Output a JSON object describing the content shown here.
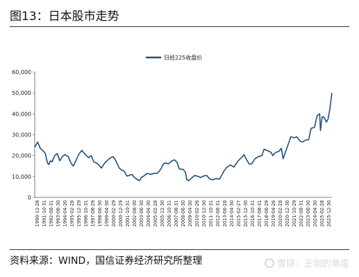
{
  "figure": {
    "title": "图13：日本股市走势",
    "source": "资料来源：WIND，国信证券经济研究所整理",
    "watermark": "雪球：王剑的角度"
  },
  "chart_data": {
    "type": "line",
    "legend": [
      "日经225收盘价"
    ],
    "ylim": [
      0,
      60000
    ],
    "yticks": [
      0,
      10000,
      20000,
      30000,
      40000,
      50000,
      60000
    ],
    "ytick_labels": [
      "0",
      "10,000",
      "20,000",
      "30,000",
      "40,000",
      "50,000",
      "60,000"
    ],
    "xtick_labels": [
      "1990-12-28",
      "1991-10-31",
      "1992-08-31",
      "1993-06-30",
      "1994-04-30",
      "1995-02-28",
      "1995-12-29",
      "1996-10-31",
      "1997-08-29",
      "1998-06-30",
      "1999-04-30",
      "2000-02-29",
      "2000-12-29",
      "2001-10-31",
      "2002-08-30",
      "2003-06-30",
      "2004-04-30",
      "2005-02-28",
      "2005-12-30",
      "2006-10-31",
      "2007-08-31",
      "2008-06-30",
      "2009-04-30",
      "2010-02-26",
      "2010-12-30",
      "2011-10-31",
      "2012-08-31",
      "2013-06-28",
      "2014-04-30",
      "2015-02-27",
      "2015-12-30",
      "2016-10-31",
      "2017-08-31",
      "2018-06-29",
      "2019-04-26",
      "2020-02-28",
      "2020-12-30",
      "2021-10-29",
      "2022-08-31",
      "2023-06-30",
      "2024-04-30",
      "2025-02-28",
      "2025-12-30"
    ],
    "series": [
      {
        "name": "日经225收盘价",
        "color": "#1f4e79",
        "x": [
          1990.95,
          1991.3,
          1991.6,
          1991.9,
          1992.2,
          1992.45,
          1992.6,
          1992.8,
          1993.0,
          1993.3,
          1993.6,
          1993.9,
          1994.2,
          1994.5,
          1994.9,
          1995.2,
          1995.5,
          1995.9,
          1996.2,
          1996.5,
          1996.9,
          1997.3,
          1997.6,
          1997.9,
          1998.2,
          1998.5,
          1998.8,
          1999.2,
          1999.6,
          1999.9,
          2000.2,
          2000.5,
          2000.9,
          2001.2,
          2001.5,
          2001.8,
          2002.1,
          2002.4,
          2002.7,
          2003.0,
          2003.3,
          2003.5,
          2003.9,
          2004.2,
          2004.6,
          2005.0,
          2005.4,
          2005.8,
          2006.1,
          2006.4,
          2006.7,
          2007.0,
          2007.4,
          2007.7,
          2008.0,
          2008.4,
          2008.7,
          2008.85,
          2009.1,
          2009.5,
          2009.8,
          2010.2,
          2010.5,
          2010.9,
          2011.2,
          2011.5,
          2011.9,
          2012.3,
          2012.7,
          2012.95,
          2013.3,
          2013.6,
          2014.0,
          2014.4,
          2014.9,
          2015.3,
          2015.6,
          2015.9,
          2016.2,
          2016.5,
          2016.9,
          2017.3,
          2017.7,
          2017.95,
          2018.3,
          2018.8,
          2018.98,
          2019.3,
          2019.7,
          2020.0,
          2020.2,
          2020.5,
          2020.9,
          2021.1,
          2021.5,
          2021.8,
          2022.2,
          2022.5,
          2022.9,
          2023.2,
          2023.5,
          2023.9,
          2024.2,
          2024.5,
          2024.6,
          2024.8,
          2025.0,
          2025.3,
          2025.5,
          2025.7,
          2025.85,
          2025.95
        ],
        "values": [
          24000,
          26500,
          23500,
          22500,
          21000,
          16500,
          15700,
          17500,
          17000,
          20000,
          21000,
          17500,
          19500,
          20500,
          19500,
          16500,
          15000,
          18500,
          21000,
          22500,
          20500,
          19000,
          20000,
          17000,
          16500,
          15500,
          14000,
          16500,
          18000,
          19000,
          19500,
          17500,
          14000,
          13000,
          12500,
          10200,
          10500,
          11000,
          9500,
          8600,
          8000,
          9500,
          10500,
          11500,
          11000,
          11500,
          11500,
          13500,
          16000,
          16500,
          16000,
          17200,
          18000,
          16800,
          13500,
          13500,
          12000,
          8500,
          8000,
          9500,
          10500,
          10000,
          9500,
          10300,
          10500,
          9000,
          8400,
          9000,
          8700,
          10400,
          13000,
          14500,
          15500,
          14500,
          17500,
          19000,
          20500,
          18000,
          16000,
          16000,
          18500,
          19500,
          20000,
          23000,
          22500,
          21500,
          20000,
          21500,
          22000,
          23500,
          18500,
          22000,
          26500,
          29000,
          28500,
          29000,
          27000,
          26500,
          27500,
          27500,
          33000,
          33500,
          39000,
          40000,
          32000,
          38500,
          38500,
          36000,
          37500,
          42000,
          47000,
          50000
        ]
      }
    ]
  }
}
